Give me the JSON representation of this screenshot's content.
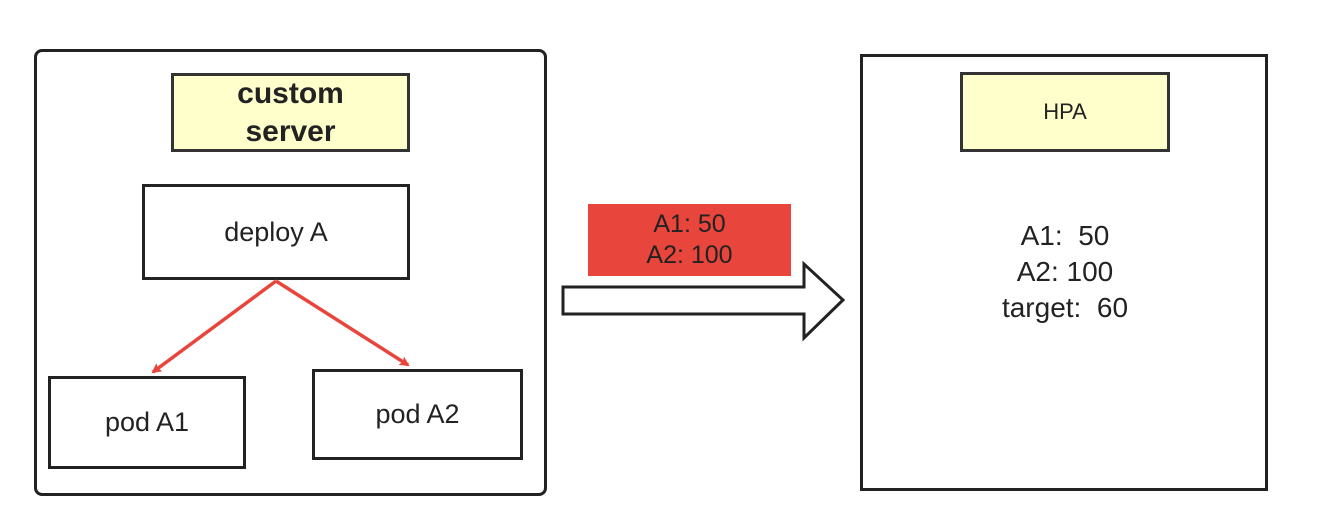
{
  "left_panel": {
    "server_label_line1": "custom",
    "server_label_line2": "server",
    "deployment_label": "deploy A",
    "pods": [
      {
        "label": "pod A1"
      },
      {
        "label": "pod A2"
      }
    ]
  },
  "transfer": {
    "metrics": [
      {
        "text": "A1: 50"
      },
      {
        "text": "A2: 100"
      }
    ]
  },
  "right_panel": {
    "title": "HPA",
    "metrics": [
      {
        "text": "A1:  50"
      },
      {
        "text": "A2: 100"
      },
      {
        "text": "target:  60"
      }
    ]
  },
  "colors": {
    "label_fill": "#ffffcc",
    "badge_fill": "#e8453c",
    "edge_color": "#e8453c",
    "border_color": "#222222"
  }
}
